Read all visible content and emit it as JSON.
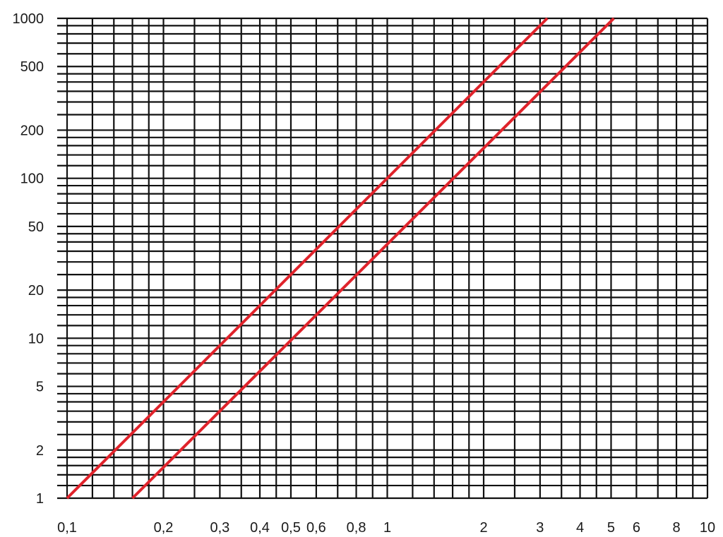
{
  "chart_data": {
    "type": "line",
    "title": "",
    "xlabel": "",
    "ylabel": "",
    "x_scale": "log",
    "y_scale": "log",
    "xlim": [
      0.1,
      10
    ],
    "ylim": [
      1,
      1000
    ],
    "grid": true,
    "x_ticks": [
      {
        "value": 0.1,
        "label": "0,1"
      },
      {
        "value": 0.2,
        "label": "0,2"
      },
      {
        "value": 0.3,
        "label": "0,3"
      },
      {
        "value": 0.4,
        "label": "0,4"
      },
      {
        "value": 0.5,
        "label": "0,5"
      },
      {
        "value": 0.6,
        "label": "0,6"
      },
      {
        "value": 0.8,
        "label": "0,8"
      },
      {
        "value": 1,
        "label": "1"
      },
      {
        "value": 2,
        "label": "2"
      },
      {
        "value": 3,
        "label": "3"
      },
      {
        "value": 4,
        "label": "4"
      },
      {
        "value": 5,
        "label": "5"
      },
      {
        "value": 6,
        "label": "6"
      },
      {
        "value": 8,
        "label": "8"
      },
      {
        "value": 10,
        "label": "10"
      }
    ],
    "y_ticks": [
      {
        "value": 1,
        "label": "1"
      },
      {
        "value": 2,
        "label": "2"
      },
      {
        "value": 5,
        "label": "5"
      },
      {
        "value": 10,
        "label": "10"
      },
      {
        "value": 20,
        "label": "20"
      },
      {
        "value": 50,
        "label": "50"
      },
      {
        "value": 100,
        "label": "100"
      },
      {
        "value": 200,
        "label": "200"
      },
      {
        "value": 500,
        "label": "500"
      },
      {
        "value": 1000,
        "label": "1000"
      }
    ],
    "x_gridlines": [
      0.1,
      0.12,
      0.14,
      0.16,
      0.18,
      0.2,
      0.25,
      0.3,
      0.35,
      0.4,
      0.45,
      0.5,
      0.6,
      0.7,
      0.8,
      0.9,
      1,
      1.2,
      1.4,
      1.6,
      1.8,
      2,
      2.5,
      3,
      3.5,
      4,
      4.5,
      5,
      6,
      7,
      8,
      9,
      10
    ],
    "y_gridlines": [
      1,
      1.2,
      1.4,
      1.6,
      1.8,
      2,
      2.5,
      3,
      3.5,
      4,
      4.5,
      5,
      6,
      7,
      8,
      9,
      10,
      12,
      14,
      16,
      18,
      20,
      25,
      30,
      35,
      40,
      45,
      50,
      60,
      70,
      80,
      90,
      100,
      120,
      140,
      160,
      180,
      200,
      250,
      300,
      350,
      400,
      450,
      500,
      600,
      700,
      800,
      900,
      1000
    ],
    "series": [
      {
        "color": "#e0232b",
        "points": [
          {
            "x": 0.1,
            "y": 1
          },
          {
            "x": 3.16,
            "y": 1000
          }
        ]
      },
      {
        "color": "#e0232b",
        "points": [
          {
            "x": 0.16,
            "y": 1
          },
          {
            "x": 5.1,
            "y": 1000
          }
        ]
      }
    ]
  }
}
